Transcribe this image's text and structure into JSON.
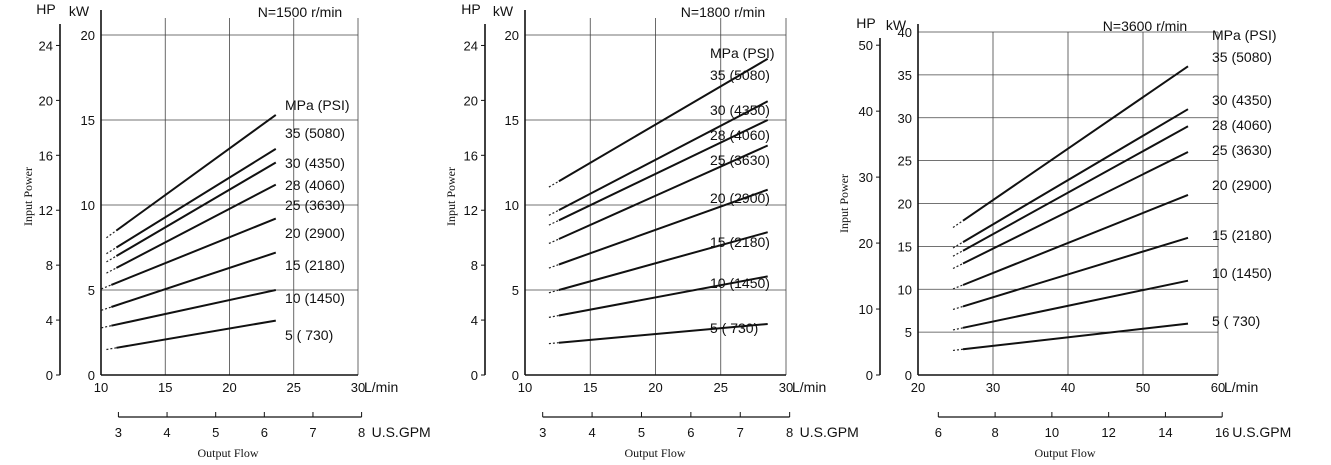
{
  "chart_data": [
    {
      "type": "line",
      "title": "N=1500 r/min",
      "xlabel": "Output Flow",
      "ylabel": "Input Power",
      "x_unit_primary": "L/min",
      "x_unit_secondary": "U.S.GPM",
      "y_unit_kw": "kW",
      "y_unit_hp": "HP",
      "legend_header": "MPa (PSI)",
      "xlim": [
        10,
        30
      ],
      "x_ticks": [
        10,
        15,
        20,
        25,
        30
      ],
      "gpm_ticks": [
        3,
        4,
        5,
        6,
        7,
        8
      ],
      "kw_lim": [
        0,
        21
      ],
      "kw_ticks": [
        0,
        5,
        10,
        15,
        20
      ],
      "hp_lim": [
        0,
        26
      ],
      "hp_ticks": [
        0,
        4,
        8,
        12,
        16,
        20,
        24
      ],
      "grid": true,
      "series": [
        {
          "name": "35 (5080)",
          "x": [
            11.2,
            23.6
          ],
          "y": [
            8.5,
            15.3
          ]
        },
        {
          "name": "30 (4350)",
          "x": [
            11.2,
            23.6
          ],
          "y": [
            7.5,
            13.3
          ]
        },
        {
          "name": "28 (4060)",
          "x": [
            11.2,
            23.6
          ],
          "y": [
            7.0,
            12.5
          ]
        },
        {
          "name": "25 (3630)",
          "x": [
            11.2,
            23.6
          ],
          "y": [
            6.3,
            11.2
          ]
        },
        {
          "name": "20 (2900)",
          "x": [
            10.8,
            23.6
          ],
          "y": [
            5.3,
            9.2
          ]
        },
        {
          "name": "15 (2180)",
          "x": [
            10.8,
            23.6
          ],
          "y": [
            4.0,
            7.2
          ]
        },
        {
          "name": "10 (1450)",
          "x": [
            10.8,
            23.6
          ],
          "y": [
            2.9,
            5.0
          ]
        },
        {
          "name": "5 ( 730)",
          "x": [
            11.2,
            23.6
          ],
          "y": [
            1.6,
            3.2
          ]
        }
      ]
    },
    {
      "type": "line",
      "title": "N=1800 r/min",
      "xlabel": "Output Flow",
      "ylabel": "Input Power",
      "x_unit_primary": "L/min",
      "x_unit_secondary": "U.S.GPM",
      "y_unit_kw": "kW",
      "y_unit_hp": "HP",
      "legend_header": "MPa (PSI)",
      "xlim": [
        10,
        30
      ],
      "x_ticks": [
        10,
        15,
        20,
        25,
        30
      ],
      "gpm_ticks": [
        3,
        4,
        5,
        6,
        7,
        8
      ],
      "kw_lim": [
        0,
        21
      ],
      "kw_ticks": [
        0,
        5,
        10,
        15,
        20
      ],
      "hp_lim": [
        0,
        26
      ],
      "hp_ticks": [
        0,
        4,
        8,
        12,
        16,
        20,
        24
      ],
      "grid": true,
      "series": [
        {
          "name": "35 (5080)",
          "x": [
            12.6,
            28.6
          ],
          "y": [
            11.4,
            18.6
          ]
        },
        {
          "name": "30 (4350)",
          "x": [
            12.6,
            28.6
          ],
          "y": [
            9.7,
            16.1
          ]
        },
        {
          "name": "28 (4060)",
          "x": [
            12.6,
            28.6
          ],
          "y": [
            9.1,
            15.0
          ]
        },
        {
          "name": "25 (3630)",
          "x": [
            12.6,
            28.6
          ],
          "y": [
            8.0,
            13.5
          ]
        },
        {
          "name": "20 (2900)",
          "x": [
            12.6,
            28.6
          ],
          "y": [
            6.5,
            10.9
          ]
        },
        {
          "name": "15 (2180)",
          "x": [
            12.6,
            28.6
          ],
          "y": [
            5.0,
            8.4
          ]
        },
        {
          "name": "10 (1450)",
          "x": [
            12.6,
            28.6
          ],
          "y": [
            3.5,
            5.8
          ]
        },
        {
          "name": "5 ( 730)",
          "x": [
            12.6,
            28.6
          ],
          "y": [
            1.9,
            3.0
          ]
        }
      ]
    },
    {
      "type": "line",
      "title": "N=3600 r/min",
      "xlabel": "Output Flow",
      "ylabel": "Input Power",
      "x_unit_primary": "L/min",
      "x_unit_secondary": "U.S.GPM",
      "y_unit_kw": "kW",
      "y_unit_hp": "HP",
      "legend_header": "MPa (PSI)",
      "xlim": [
        20,
        60
      ],
      "x_ticks": [
        20,
        30,
        40,
        50,
        60
      ],
      "gpm_ticks": [
        6,
        8,
        10,
        12,
        14,
        16
      ],
      "kw_lim": [
        0,
        40
      ],
      "kw_ticks": [
        0,
        5,
        10,
        15,
        20,
        25,
        30,
        35,
        40
      ],
      "hp_lim": [
        0,
        52
      ],
      "hp_ticks": [
        0,
        10,
        20,
        30,
        40,
        50
      ],
      "grid": true,
      "series": [
        {
          "name": "35 (5080)",
          "x": [
            26,
            56
          ],
          "y": [
            18.0,
            36.0
          ]
        },
        {
          "name": "30 (4350)",
          "x": [
            26,
            56
          ],
          "y": [
            15.5,
            31.0
          ]
        },
        {
          "name": "28 (4060)",
          "x": [
            26,
            56
          ],
          "y": [
            14.5,
            29.0
          ]
        },
        {
          "name": "25 (3630)",
          "x": [
            26,
            56
          ],
          "y": [
            13.0,
            26.0
          ]
        },
        {
          "name": "20 (2900)",
          "x": [
            26,
            56
          ],
          "y": [
            10.5,
            21.0
          ]
        },
        {
          "name": "15 (2180)",
          "x": [
            26,
            56
          ],
          "y": [
            8.0,
            16.0
          ]
        },
        {
          "name": "10 (1450)",
          "x": [
            26,
            56
          ],
          "y": [
            5.5,
            11.0
          ]
        },
        {
          "name": "5 ( 730)",
          "x": [
            26,
            56
          ],
          "y": [
            3.0,
            6.0
          ]
        }
      ]
    }
  ]
}
